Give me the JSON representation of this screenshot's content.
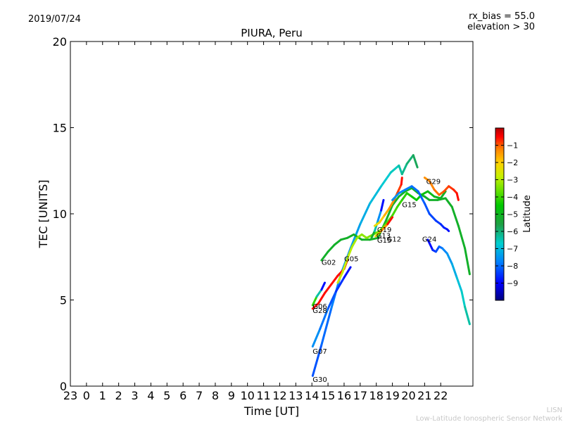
{
  "header": {
    "date": "2019/07/24",
    "bias_line": "rx_bias = 55.0",
    "elevation_line": "elevation > 30"
  },
  "footer": {
    "short": "LISN",
    "long": "Low-Latitude Ionospheric Sensor Network"
  },
  "colors": {
    "colormap": [
      "#00007f",
      "#0000ff",
      "#007fff",
      "#00cfcf",
      "#1fa045",
      "#00c800",
      "#5fe000",
      "#c8f000",
      "#ffd000",
      "#ff8000",
      "#ff0000",
      "#b00000"
    ]
  },
  "chart_data": {
    "type": "line",
    "title": "PIURA, Peru",
    "xlabel": "Time [UT]",
    "ylabel": "TEC [UNITS]",
    "xlim": [
      23,
      48
    ],
    "ylim": [
      0,
      20
    ],
    "xtick_labels": [
      "23",
      "0",
      "1",
      "2",
      "3",
      "4",
      "5",
      "6",
      "7",
      "8",
      "9",
      "10",
      "11",
      "12",
      "13",
      "14",
      "15",
      "16",
      "17",
      "18",
      "19",
      "20",
      "21",
      "22"
    ],
    "yticks": [
      0,
      5,
      10,
      15,
      20
    ],
    "grid": false,
    "colorbar": {
      "label": "Latitude",
      "range": [
        -10,
        0
      ],
      "tick_labels": [
        "−1",
        "−2",
        "−3",
        "−4",
        "−5",
        "−6",
        "−7",
        "−8",
        "−9"
      ]
    },
    "series": [
      {
        "name": "G30",
        "lat": [
          -8.5,
          -6.5
        ],
        "points": [
          [
            38.05,
            0.6
          ],
          [
            38.6,
            2.4
          ],
          [
            39.2,
            4.5
          ],
          [
            39.8,
            6.5
          ],
          [
            40.4,
            8.0
          ],
          [
            41.0,
            9.4
          ],
          [
            41.6,
            10.6
          ],
          [
            42.3,
            11.6
          ],
          [
            42.9,
            12.4
          ],
          [
            43.4,
            12.8
          ],
          [
            43.6,
            12.3
          ],
          [
            43.9,
            12.9
          ],
          [
            44.3,
            13.4
          ],
          [
            44.55,
            12.7
          ]
        ]
      },
      {
        "name": "G07",
        "lat": [
          -8.0,
          -9.0
        ],
        "points": [
          [
            38.05,
            2.3
          ],
          [
            38.5,
            3.3
          ],
          [
            39.0,
            4.5
          ],
          [
            39.5,
            5.5
          ],
          [
            40.0,
            6.3
          ],
          [
            40.4,
            6.9
          ]
        ]
      },
      {
        "name": "G28",
        "lat": [
          -1.0,
          -1.0
        ],
        "points": [
          [
            38.05,
            4.5
          ],
          [
            38.4,
            4.8
          ],
          [
            38.8,
            5.4
          ],
          [
            39.2,
            5.9
          ],
          [
            39.6,
            6.4
          ],
          [
            40.0,
            6.8
          ],
          [
            40.2,
            7.3
          ]
        ]
      },
      {
        "name": "G06",
        "lat": [
          -5.0,
          -9.0
        ],
        "points": [
          [
            38.05,
            4.7
          ],
          [
            38.3,
            5.2
          ],
          [
            38.6,
            5.6
          ],
          [
            38.8,
            6.0
          ]
        ]
      },
      {
        "name": "G02",
        "lat": [
          -6.0,
          -6.0
        ],
        "points": [
          [
            38.6,
            7.3
          ],
          [
            39.0,
            7.8
          ],
          [
            39.4,
            8.2
          ],
          [
            39.8,
            8.5
          ],
          [
            40.2,
            8.6
          ],
          [
            40.6,
            8.8
          ],
          [
            41.1,
            8.5
          ],
          [
            41.6,
            8.5
          ],
          [
            42.1,
            8.6
          ],
          [
            42.6,
            9.6
          ],
          [
            43.0,
            10.5
          ],
          [
            43.4,
            11.0
          ],
          [
            43.8,
            11.3
          ],
          [
            44.2,
            11.5
          ],
          [
            44.6,
            11.2
          ],
          [
            45.0,
            11.0
          ],
          [
            45.3,
            10.8
          ],
          [
            45.8,
            10.8
          ],
          [
            46.3,
            10.9
          ],
          [
            46.7,
            10.4
          ],
          [
            47.1,
            9.3
          ],
          [
            47.5,
            8.0
          ],
          [
            47.8,
            6.5
          ]
        ]
      },
      {
        "name": "G05",
        "lat": [
          -3.5,
          -6.0
        ],
        "points": [
          [
            39.6,
            6.0
          ],
          [
            39.9,
            6.6
          ],
          [
            40.2,
            7.4
          ],
          [
            40.5,
            8.1
          ],
          [
            40.8,
            8.6
          ],
          [
            41.1,
            8.8
          ],
          [
            41.4,
            8.6
          ],
          [
            41.8,
            8.8
          ],
          [
            42.2,
            9.0
          ],
          [
            42.6,
            9.4
          ],
          [
            43.0,
            9.9
          ],
          [
            43.3,
            10.4
          ],
          [
            43.6,
            10.8
          ],
          [
            43.9,
            11.2
          ],
          [
            44.2,
            11.0
          ],
          [
            44.5,
            10.8
          ],
          [
            44.8,
            11.1
          ],
          [
            45.2,
            11.3
          ],
          [
            45.6,
            11.0
          ],
          [
            46.0,
            10.9
          ],
          [
            46.3,
            11.3
          ]
        ]
      },
      {
        "name": "G13",
        "lat": [
          -6.0,
          -9.0
        ],
        "points": [
          [
            41.7,
            8.6
          ],
          [
            41.9,
            9.0
          ],
          [
            42.1,
            9.6
          ],
          [
            42.3,
            10.2
          ],
          [
            42.45,
            10.8
          ]
        ]
      },
      {
        "name": "G19",
        "lat": [
          -3.0,
          -1.0
        ],
        "points": [
          [
            41.9,
            9.3
          ],
          [
            42.2,
            9.5
          ],
          [
            42.5,
            9.9
          ],
          [
            42.8,
            10.3
          ],
          [
            43.1,
            10.8
          ],
          [
            43.3,
            11.2
          ],
          [
            43.55,
            11.7
          ],
          [
            43.6,
            12.1
          ]
        ]
      },
      {
        "name": "G12",
        "lat": [
          -3.0,
          -1.0
        ],
        "points": [
          [
            41.95,
            8.7
          ],
          [
            42.3,
            9.0
          ],
          [
            42.7,
            9.4
          ],
          [
            43.0,
            9.8
          ]
        ]
      },
      {
        "name": "G15",
        "lat": [
          -8.0,
          -9.0
        ],
        "points": [
          [
            43.0,
            10.8
          ],
          [
            43.4,
            11.2
          ],
          [
            43.8,
            11.4
          ],
          [
            44.2,
            11.6
          ],
          [
            44.6,
            11.3
          ],
          [
            45.0,
            10.6
          ],
          [
            45.3,
            10.0
          ],
          [
            45.7,
            9.6
          ],
          [
            46.0,
            9.4
          ],
          [
            46.2,
            9.2
          ],
          [
            46.4,
            9.1
          ],
          [
            46.5,
            9.0
          ]
        ]
      },
      {
        "name": "G29",
        "lat": [
          -2.0,
          -1.0
        ],
        "points": [
          [
            45.0,
            12.1
          ],
          [
            45.3,
            11.9
          ],
          [
            45.6,
            11.4
          ],
          [
            45.9,
            11.1
          ],
          [
            46.2,
            11.3
          ],
          [
            46.5,
            11.6
          ],
          [
            46.8,
            11.4
          ],
          [
            47.0,
            11.2
          ],
          [
            47.1,
            10.8
          ]
        ]
      },
      {
        "name": "G24",
        "lat": [
          -9.0,
          -7.0
        ],
        "points": [
          [
            45.2,
            8.5
          ],
          [
            45.5,
            7.9
          ],
          [
            45.7,
            7.8
          ],
          [
            45.9,
            8.1
          ],
          [
            46.1,
            8.0
          ],
          [
            46.4,
            7.7
          ],
          [
            46.7,
            7.1
          ],
          [
            47.0,
            6.3
          ],
          [
            47.3,
            5.5
          ],
          [
            47.5,
            4.6
          ],
          [
            47.8,
            3.6
          ]
        ]
      }
    ],
    "prn_labels": [
      {
        "text": "G19",
        "x": 42.05,
        "y": 9.1
      },
      {
        "text": "G13",
        "x": 42.0,
        "y": 8.75
      },
      {
        "text": "G15",
        "x": 42.05,
        "y": 8.5
      },
      {
        "text": "G12",
        "x": 42.65,
        "y": 8.55
      },
      {
        "text": "G15",
        "x": 43.6,
        "y": 10.55
      },
      {
        "text": "G29",
        "x": 45.1,
        "y": 11.9
      },
      {
        "text": "G24",
        "x": 44.85,
        "y": 8.55
      },
      {
        "text": "G05",
        "x": 40.0,
        "y": 7.4
      },
      {
        "text": "G02",
        "x": 38.6,
        "y": 7.2
      },
      {
        "text": "G06",
        "x": 38.05,
        "y": 4.65
      },
      {
        "text": "G28",
        "x": 38.05,
        "y": 4.4
      },
      {
        "text": "G07",
        "x": 38.05,
        "y": 2.05
      },
      {
        "text": "G30",
        "x": 38.05,
        "y": 0.4
      }
    ]
  }
}
